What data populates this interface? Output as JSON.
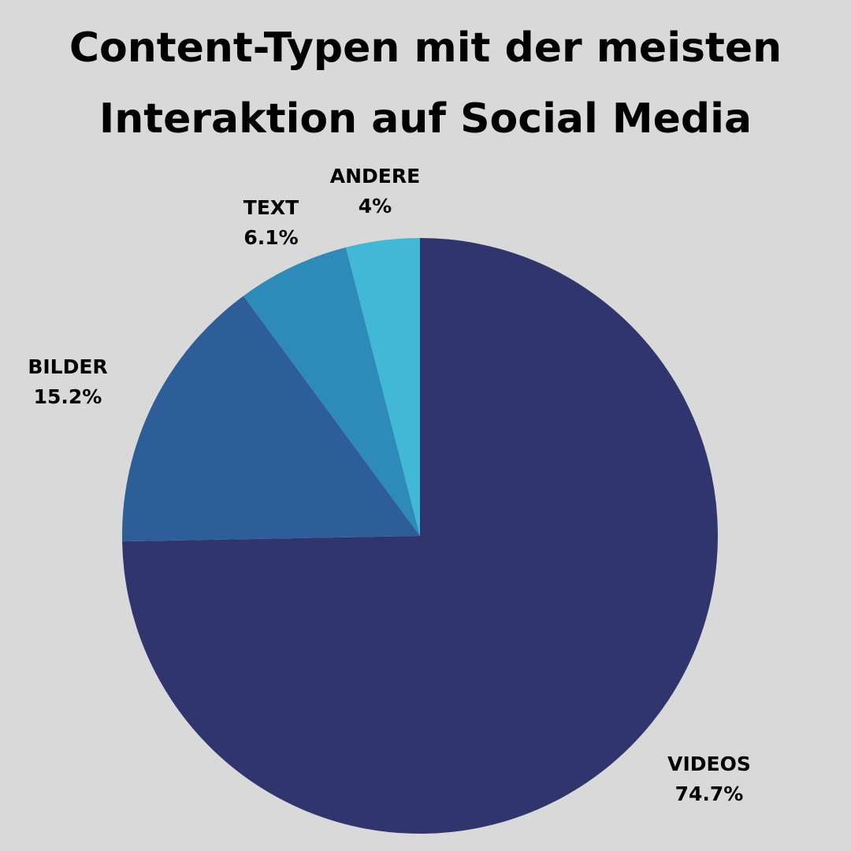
{
  "title": {
    "line1": "Content-Typen mit der meisten",
    "line2": "Interaktion auf Social Media"
  },
  "chart_data": {
    "type": "pie",
    "title": "Content-Typen mit der meisten Interaktion auf Social Media",
    "unit": "%",
    "start": "12 o'clock",
    "direction": "clockwise",
    "slices": [
      {
        "label": "VIDEOS",
        "value": 74.7,
        "value_label": "74.7%",
        "color": "#31356e"
      },
      {
        "label": "BILDER",
        "value": 15.2,
        "value_label": "15.2%",
        "color": "#2e5e98"
      },
      {
        "label": "TEXT",
        "value": 6.1,
        "value_label": "6.1%",
        "color": "#2d8ab9"
      },
      {
        "label": "ANDERE",
        "value": 4,
        "value_label": "4%",
        "color": "#41b8d5"
      }
    ]
  }
}
